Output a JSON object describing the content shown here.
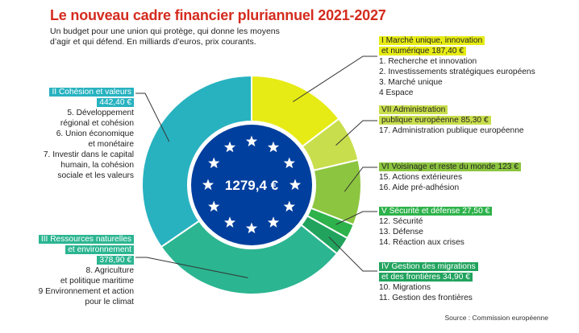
{
  "title": "Le nouveau cadre financier pluriannuel 2021-2027",
  "subtitle": "Un budget pour une union qui protège, qui donne les moyens d’agir et qui défend. En milliards d’euros, prix courants.",
  "source": "Source : Commission européenne",
  "center_total": "1279,4 €",
  "colors": {
    "title": "#d42b1e",
    "eu_blue": "#003f9e",
    "star": "#ffffff",
    "headings": [
      "#dde61c",
      "#bcd84a",
      "#8dc63f",
      "#2db24a",
      "#22a565",
      "#1ea599",
      "#29b5c1"
    ]
  },
  "chart_data": {
    "type": "pie",
    "title": "Le nouveau cadre financier pluriannuel 2021-2027",
    "total": 1279.4,
    "series": [
      {
        "name": "I Marché unique, innovation et numérique",
        "value": 187.4,
        "color": "#e6eb15"
      },
      {
        "name": "VII Administration publique européenne",
        "value": 85.3,
        "color": "#c9de4c"
      },
      {
        "name": "VI Voisinage et reste du monde",
        "value": 123,
        "color": "#8cc53f"
      },
      {
        "name": "V Sécurité et défense",
        "value": 27.5,
        "color": "#2eb24b"
      },
      {
        "name": "IV Gestion des migrations et des frontières",
        "value": 34.9,
        "color": "#21a35e"
      },
      {
        "name": "III Ressources naturelles et environnement",
        "value": 378.9,
        "color": "#2bb591"
      },
      {
        "name": "II Cohésion et valeurs",
        "value": 442.4,
        "color": "#28b2c0"
      }
    ]
  },
  "labels": {
    "i": {
      "heading_lines": [
        "I Marché unique, innovation",
        "et numérique 187,40 €"
      ],
      "items": [
        "1. Recherche et innovation",
        "2. Investissements stratégiques européens",
        "3. Marché unique",
        "4 Espace"
      ]
    },
    "vii": {
      "heading_lines": [
        "VII Administration",
        "publique européenne 85,30 €"
      ],
      "items": [
        "17. Administration publique européenne"
      ]
    },
    "vi": {
      "heading_lines": [
        "VI Voisinage et reste du monde 123 €"
      ],
      "items": [
        "15. Actions extérieures",
        "16. Aide pré-adhésion"
      ]
    },
    "v": {
      "heading_lines": [
        "V Sécurité et défense 27,50 €"
      ],
      "items": [
        "12. Sécurité",
        "13. Défense",
        "14. Réaction aux crises"
      ]
    },
    "iv": {
      "heading_lines": [
        "IV Gestion des migrations",
        "et des frontières 34,90 €"
      ],
      "items": [
        "10. Migrations",
        "11. Gestion des frontières"
      ]
    },
    "ii": {
      "heading_lines": [
        "II Cohésion et valeurs",
        "442,40 €"
      ],
      "items": [
        "5. Développement",
        "régional et cohésion",
        "6. Union économique",
        "et monétaire",
        "7. Investir dans le capital",
        "humain, la cohésion",
        "sociale et les valeurs"
      ]
    },
    "iii": {
      "heading_lines": [
        "III Ressources naturelles",
        "et environnement",
        "378,90 €"
      ],
      "items": [
        "8. Agriculture",
        "et politique maritime",
        "9 Environnement et action",
        "pour le climat"
      ]
    }
  }
}
